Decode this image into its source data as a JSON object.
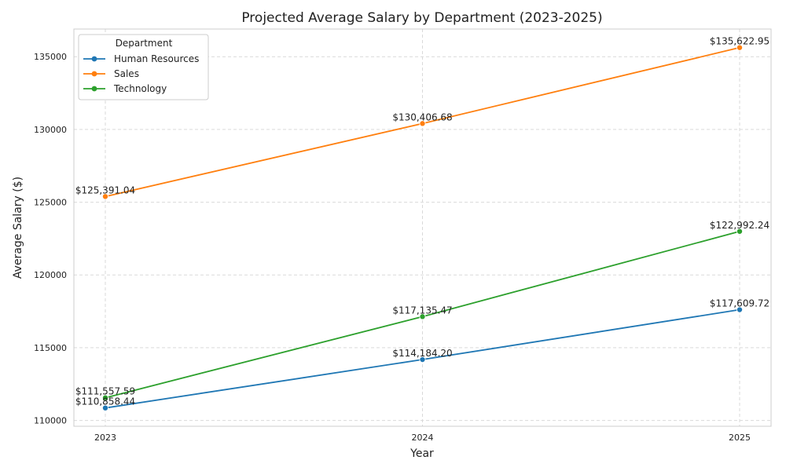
{
  "chart_data": {
    "type": "line",
    "title": "Projected Average Salary by Department (2023-2025)",
    "xlabel": "Year",
    "ylabel": "Average Salary ($)",
    "x": [
      2023,
      2024,
      2025
    ],
    "x_tick_labels": [
      "2023",
      "2024",
      "2025"
    ],
    "ylim": [
      109600,
      136900
    ],
    "y_ticks": [
      110000,
      115000,
      120000,
      125000,
      130000,
      135000
    ],
    "y_tick_labels": [
      "110000",
      "115000",
      "120000",
      "125000",
      "130000",
      "135000"
    ],
    "grid": true,
    "legend": {
      "title": "Department",
      "position": "top-left"
    },
    "series": [
      {
        "name": "Human Resources",
        "color": "#1f77b4",
        "values": [
          110858.44,
          114184.2,
          117609.72
        ],
        "labels": [
          "$110,858.44",
          "$114,184.20",
          "$117,609.72"
        ]
      },
      {
        "name": "Sales",
        "color": "#ff7f0e",
        "values": [
          125391.04,
          130406.68,
          135622.95
        ],
        "labels": [
          "$125,391.04",
          "$130,406.68",
          "$135,622.95"
        ]
      },
      {
        "name": "Technology",
        "color": "#2ca02c",
        "values": [
          111557.59,
          117135.47,
          122992.24
        ],
        "labels": [
          "$111,557.59",
          "$117,135.47",
          "$122,992.24"
        ]
      }
    ]
  }
}
